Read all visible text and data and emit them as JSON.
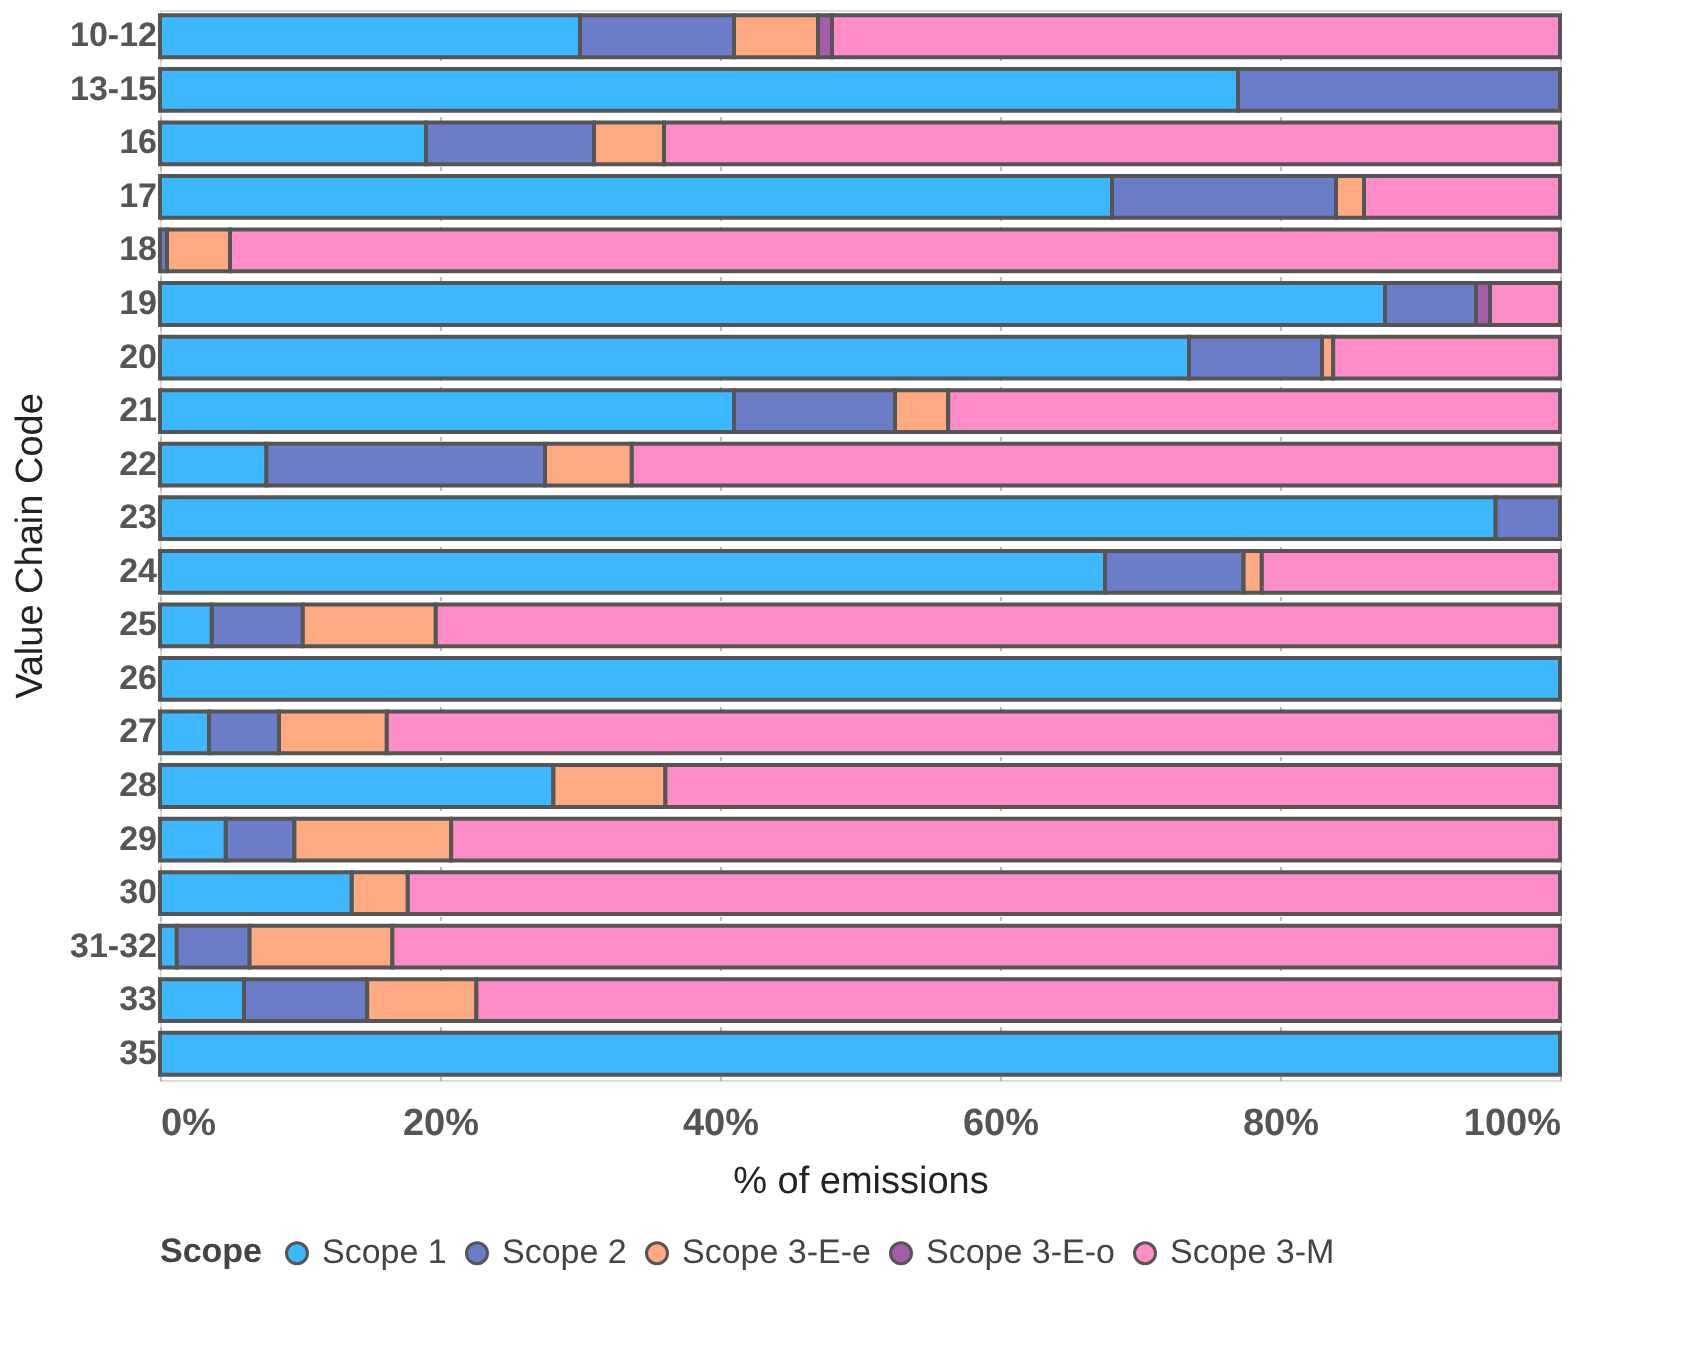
{
  "chart_data": {
    "type": "bar",
    "orientation": "horizontal",
    "stacked": true,
    "xlabel": "% of emissions",
    "ylabel": "Value Chain Code",
    "legend_title": "Scope",
    "legend": "bottom",
    "grid": "x",
    "categories": [
      "10-12",
      "13-15",
      "16",
      "17",
      "18",
      "19",
      "20",
      "21",
      "22",
      "23",
      "24",
      "25",
      "26",
      "27",
      "28",
      "29",
      "30",
      "31-32",
      "33",
      "35"
    ],
    "xlim": [
      0,
      100
    ],
    "xticks": [
      {
        "value": 0,
        "label": "0%"
      },
      {
        "value": 20,
        "label": "20%"
      },
      {
        "value": 40,
        "label": "40%"
      },
      {
        "value": 60,
        "label": "60%"
      },
      {
        "value": 80,
        "label": "80%"
      },
      {
        "value": 100,
        "label": "100%"
      }
    ],
    "series": [
      {
        "name": "Scope 1",
        "color": "#3db7fe",
        "values": [
          30,
          77,
          19,
          68,
          0,
          87.5,
          73.5,
          41,
          7.6,
          95.4,
          67.5,
          3.7,
          100,
          3.5,
          28.1,
          4.7,
          13.7,
          1.2,
          6,
          100
        ]
      },
      {
        "name": "Scope 2",
        "color": "#6b7dc8",
        "values": [
          11,
          23,
          12,
          16,
          0.5,
          6.5,
          9.5,
          11.5,
          19.9,
          4.6,
          9.9,
          6.5,
          0,
          5,
          0,
          4.9,
          0,
          5.2,
          8.8,
          0
        ]
      },
      {
        "name": "Scope 3-E-e",
        "color": "#fda982",
        "values": [
          6,
          0,
          5,
          2,
          4.5,
          0,
          0.8,
          3.8,
          6.2,
          0,
          1.3,
          9.5,
          0,
          7.7,
          8,
          11.2,
          4,
          10.2,
          7.8,
          0
        ]
      },
      {
        "name": "Scope 3-E-o",
        "color": "#a55caa",
        "values": [
          1,
          0,
          0,
          0,
          0,
          1,
          0,
          0,
          0,
          0,
          0,
          0,
          0,
          0,
          0,
          0,
          0,
          0,
          0,
          0
        ]
      },
      {
        "name": "Scope 3-M",
        "color": "#fe8dc7",
        "values": [
          52,
          0,
          64,
          14,
          95,
          5,
          16.2,
          43.7,
          66.3,
          0,
          21.3,
          80.3,
          0,
          83.8,
          63.9,
          79.2,
          82.3,
          83.4,
          77.4,
          0
        ]
      }
    ]
  }
}
